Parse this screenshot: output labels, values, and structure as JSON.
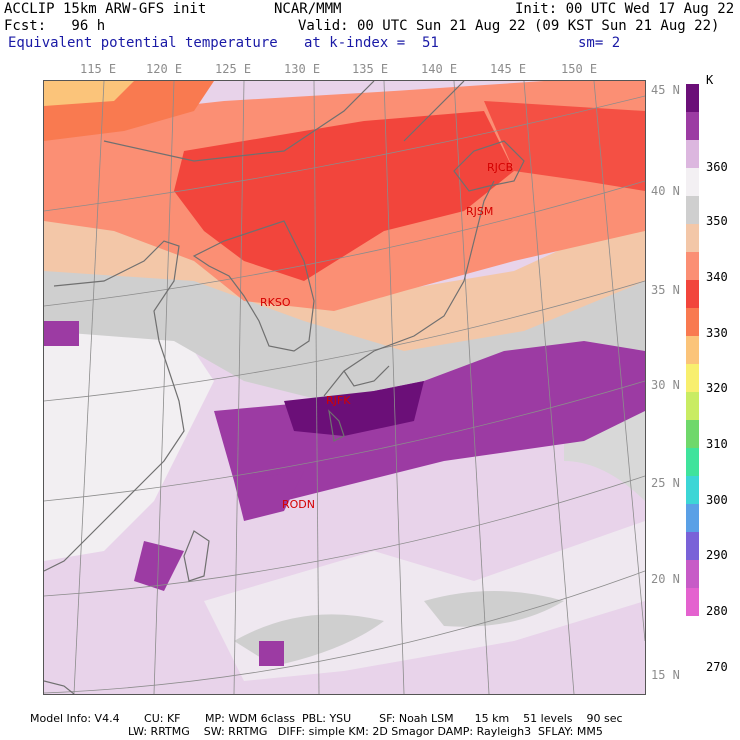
{
  "header": {
    "model": "ACCLIP 15km ARW-GFS init",
    "org": "NCAR/MMM",
    "init": "Init: 00 UTC Wed 17 Aug 22",
    "fcst": "Fcst:   96 h",
    "valid": "Valid: 00 UTC Sun 21 Aug 22 (09 KST Sun 21 Aug 22)",
    "field": "Equivalent potential temperature",
    "level": "at k-index =  51",
    "smooth": "sm= 2"
  },
  "map": {
    "lon_labels": [
      "115 E",
      "120 E",
      "125 E",
      "130 E",
      "135 E",
      "140 E",
      "145 E",
      "150 E"
    ],
    "lat_labels": [
      "45 N",
      "40 N",
      "35 N",
      "30 N",
      "25 N",
      "20 N",
      "15 N"
    ],
    "stations": [
      {
        "code": "RJCB",
        "lon": 143.2,
        "lat": 42.7
      },
      {
        "code": "RJSM",
        "lon": 141.4,
        "lat": 40.7
      },
      {
        "code": "RKSO",
        "lon": 127.0,
        "lat": 37.1
      },
      {
        "code": "RJFK",
        "lon": 130.7,
        "lat": 31.8
      },
      {
        "code": "RODN",
        "lon": 127.8,
        "lat": 26.4
      }
    ]
  },
  "colorbar": {
    "unit": "K",
    "labels": [
      "360",
      "350",
      "340",
      "330",
      "320",
      "310",
      "300",
      "290",
      "280",
      "270"
    ],
    "colors": [
      "#6b0f78",
      "#9c3ba3",
      "#dcb7df",
      "#f3f0f3",
      "#cfcfcf",
      "#f3c7a8",
      "#fb8f74",
      "#f2453c",
      "#f97a50",
      "#fbc47a",
      "#f8ef6e",
      "#c9ec63",
      "#6fd86b",
      "#3fe39c",
      "#3cd6d6",
      "#5aa0e6",
      "#7a62d8",
      "#c75bc7",
      "#e462cf"
    ]
  },
  "footer": {
    "line1": "Model Info: V4.4       CU: KF       MP: WDM 6class  PBL: YSU        SF: Noah LSM      15 km    51 levels    90 sec",
    "line2": "LW: RRTMG    SW: RRTMG   DIFF: simple KM: 2D Smagor DAMP: Rayleigh3  SFLAY: MM5"
  }
}
